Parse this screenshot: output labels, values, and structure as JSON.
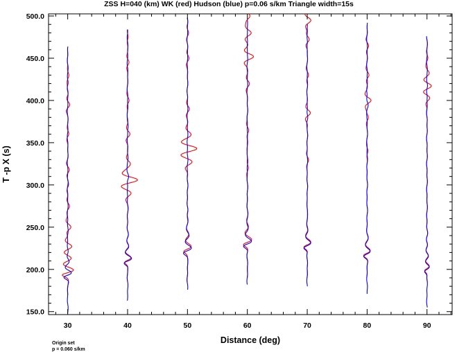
{
  "chart_data": {
    "type": "line",
    "title": "ZSS H=040 (km) WK (red) Hudson (blue) p=0.06 s/km Triangle width=15s",
    "xlabel": "Distance (deg)",
    "ylabel": "T -p X (s)",
    "xlim": [
      26.8,
      94.2
    ],
    "ylim": [
      146.5,
      502.5
    ],
    "xticks": [
      30,
      40,
      50,
      60,
      70,
      80,
      90
    ],
    "xtick_labels": [
      "30",
      "40",
      "50",
      "60",
      "70",
      "80",
      "90"
    ],
    "yticks": [
      150,
      200,
      250,
      300,
      350,
      400,
      450,
      500
    ],
    "ytick_labels": [
      "150.0",
      "200.0",
      "250.0",
      "300.0",
      "350.0",
      "400.0",
      "450.0",
      "500.0"
    ],
    "grid": false,
    "legend": "none",
    "colors": {
      "wk": "#ff0000",
      "hudson": "#0000ff",
      "frame": "#000000"
    },
    "series": [
      {
        "distance": 30,
        "blue": {
          "t_start": 148,
          "t_end": 463,
          "arrival": 193,
          "amp": 1.6,
          "period": 13,
          "decay": 14,
          "bumps": [
            [
              300,
              0.3
            ],
            [
              420,
              0.2
            ]
          ]
        },
        "red": {
          "t_start": 170,
          "t_end": 464,
          "arrival": 196,
          "amp": 2.3,
          "period": 14,
          "decay": 20,
          "bumps": [
            [
              250,
              1.2
            ],
            [
              227,
              0.9
            ],
            [
              275,
              0.5
            ],
            [
              318,
              0.5
            ],
            [
              360,
              0.4
            ],
            [
              395,
              0.6
            ],
            [
              430,
              0.4
            ]
          ]
        }
      },
      {
        "distance": 40,
        "blue": {
          "t_start": 163,
          "t_end": 484,
          "arrival": 210,
          "amp": 1.6,
          "period": 14,
          "decay": 12,
          "bumps": [
            [
              310,
              0.4
            ],
            [
              370,
              0.2
            ]
          ]
        },
        "red": {
          "t_start": 185,
          "t_end": 484,
          "arrival": 211,
          "amp": 1.4,
          "period": 14,
          "decay": 12,
          "bumps": [
            [
              306,
              3.2
            ],
            [
              290,
              1.0
            ],
            [
              325,
              1.0
            ],
            [
              360,
              0.7
            ],
            [
              400,
              0.5
            ],
            [
              445,
              0.6
            ],
            [
              475,
              0.3
            ]
          ]
        }
      },
      {
        "distance": 50,
        "blue": {
          "t_start": 176,
          "t_end": 498,
          "arrival": 222,
          "amp": 1.7,
          "period": 15,
          "decay": 13,
          "bumps": [
            [
              260,
              0.2
            ],
            [
              440,
              0.1
            ]
          ]
        },
        "red": {
          "t_start": 185,
          "t_end": 498,
          "arrival": 224,
          "amp": 1.6,
          "period": 15,
          "decay": 13,
          "bumps": [
            [
              343,
              3.0
            ],
            [
              327,
              1.2
            ],
            [
              360,
              0.9
            ],
            [
              390,
              0.5
            ],
            [
              450,
              0.4
            ],
            [
              480,
              0.3
            ]
          ]
        }
      },
      {
        "distance": 60,
        "blue": {
          "t_start": 182,
          "t_end": 495,
          "arrival": 230,
          "amp": 1.8,
          "period": 15,
          "decay": 12,
          "bumps": [
            [
              350,
              0.2
            ],
            [
              470,
              0.2
            ]
          ]
        },
        "red": {
          "t_start": 190,
          "t_end": 503,
          "arrival": 232,
          "amp": 1.8,
          "period": 15,
          "decay": 12,
          "bumps": [
            [
              452,
              2.0
            ],
            [
              480,
              1.2
            ],
            [
              500,
              1.0
            ],
            [
              420,
              0.6
            ],
            [
              365,
              0.5
            ],
            [
              320,
              0.4
            ]
          ]
        }
      },
      {
        "distance": 70,
        "blue": {
          "t_start": 180,
          "t_end": 490,
          "arrival": 228,
          "amp": 1.6,
          "period": 15,
          "decay": 12,
          "bumps": [
            [
              380,
              0.3
            ],
            [
              470,
              0.2
            ]
          ]
        },
        "red": {
          "t_start": 190,
          "t_end": 502,
          "arrival": 229,
          "amp": 1.6,
          "period": 15,
          "decay": 12,
          "bumps": [
            [
              385,
              1.0
            ],
            [
              495,
              1.2
            ],
            [
              472,
              0.8
            ],
            [
              430,
              0.4
            ],
            [
              330,
              0.3
            ]
          ]
        }
      },
      {
        "distance": 80,
        "blue": {
          "t_start": 171,
          "t_end": 492,
          "arrival": 218,
          "amp": 1.5,
          "period": 15,
          "decay": 11,
          "bumps": [
            [
              395,
              0.3
            ]
          ]
        },
        "red": {
          "t_start": 190,
          "t_end": 490,
          "arrival": 219,
          "amp": 1.5,
          "period": 15,
          "decay": 11,
          "bumps": [
            [
              400,
              1.3
            ],
            [
              380,
              0.5
            ],
            [
              430,
              0.6
            ],
            [
              465,
              0.4
            ],
            [
              340,
              0.3
            ]
          ]
        }
      },
      {
        "distance": 90,
        "blue": {
          "t_start": 155,
          "t_end": 476,
          "arrival": 200,
          "amp": 1.0,
          "period": 13,
          "decay": 16,
          "bumps": [
            [
              417,
              0.3
            ]
          ]
        },
        "red": {
          "t_start": 185,
          "t_end": 474,
          "arrival": 201,
          "amp": 1.0,
          "period": 13,
          "decay": 16,
          "bumps": [
            [
              417,
              1.5
            ],
            [
              403,
              0.8
            ],
            [
              432,
              0.6
            ],
            [
              450,
              0.3
            ]
          ]
        }
      }
    ]
  },
  "footer": {
    "line1": "Origin set",
    "line2": "p = 0.060 s/km"
  }
}
